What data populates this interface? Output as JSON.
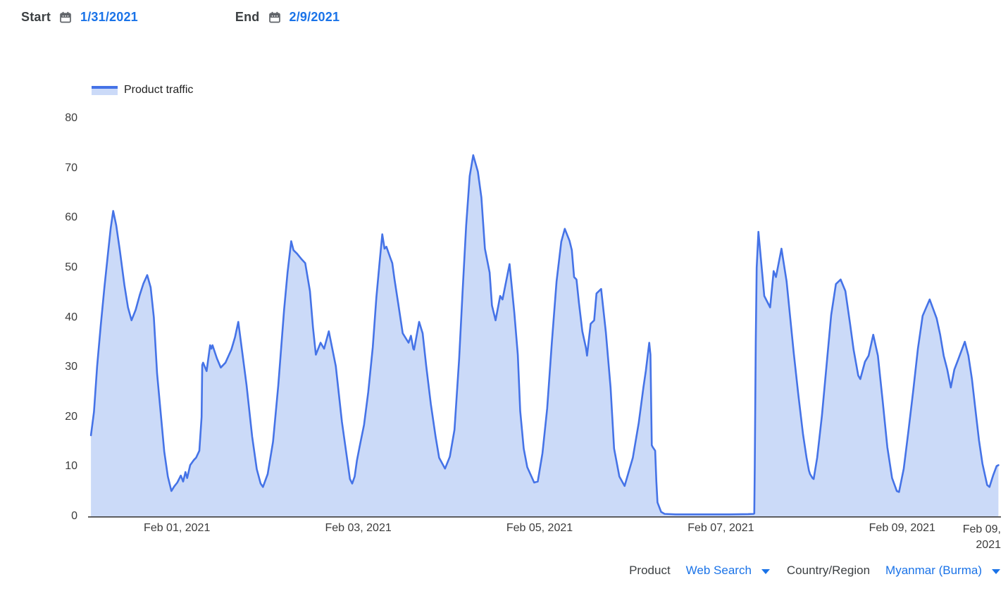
{
  "header": {
    "start_label": "Start",
    "start_value": "1/31/2021",
    "end_label": "End",
    "end_value": "2/9/2021"
  },
  "legend": {
    "label": "Product traffic"
  },
  "controls": {
    "product_label": "Product",
    "product_value": "Web Search",
    "region_label": "Country/Region",
    "region_value": "Myanmar (Burma)"
  },
  "colors": {
    "line": "#4573e7",
    "fill": "#cbdaf8",
    "link_blue": "#1a73e8",
    "text_dark": "#3c4043",
    "axis_line": "#3d3d3d"
  },
  "chart_data": {
    "type": "area",
    "title": "Product traffic",
    "xlabel": "",
    "ylabel": "",
    "x_unit": "days since Jan 31, 2021 00:00",
    "ylim": [
      0,
      80
    ],
    "y_ticks": [
      0,
      10,
      20,
      30,
      40,
      50,
      60,
      70,
      80
    ],
    "x_ticks": [
      {
        "day": 1,
        "label": "Feb 01, 2021"
      },
      {
        "day": 3,
        "label": "Feb 03, 2021"
      },
      {
        "day": 5,
        "label": "Feb 05, 2021"
      },
      {
        "day": 7,
        "label": "Feb 07, 2021"
      },
      {
        "day": 9,
        "label": "Feb 09, 2021"
      },
      {
        "day": 10.08,
        "label": "Feb 09, 2021",
        "lines": [
          "Feb 09,",
          "2021"
        ],
        "align": "right"
      }
    ],
    "grid": false,
    "legend_position": "top-left",
    "series": [
      {
        "name": "Product traffic",
        "points": [
          [
            0.051,
            16.3
          ],
          [
            0.085,
            21
          ],
          [
            0.12,
            30.2
          ],
          [
            0.16,
            38.5
          ],
          [
            0.2,
            46
          ],
          [
            0.24,
            53
          ],
          [
            0.27,
            58
          ],
          [
            0.297,
            61.4
          ],
          [
            0.33,
            58.5
          ],
          [
            0.37,
            53.5
          ],
          [
            0.42,
            46.5
          ],
          [
            0.46,
            42
          ],
          [
            0.499,
            39.4
          ],
          [
            0.545,
            41.5
          ],
          [
            0.59,
            44.5
          ],
          [
            0.63,
            46.8
          ],
          [
            0.672,
            48.5
          ],
          [
            0.71,
            46
          ],
          [
            0.745,
            40
          ],
          [
            0.781,
            28.7
          ],
          [
            0.82,
            21
          ],
          [
            0.86,
            13
          ],
          [
            0.9,
            8
          ],
          [
            0.939,
            5.1
          ],
          [
            0.97,
            6.0
          ],
          [
            1.004,
            6.8
          ],
          [
            1.043,
            8.2
          ],
          [
            1.068,
            7.0
          ],
          [
            1.094,
            8.9
          ],
          [
            1.113,
            7.7
          ],
          [
            1.146,
            10.3
          ],
          [
            1.185,
            11.3
          ],
          [
            1.211,
            11.8
          ],
          [
            1.247,
            13.2
          ],
          [
            1.272,
            20
          ],
          [
            1.279,
            30.4
          ],
          [
            1.288,
            30.9
          ],
          [
            1.327,
            29.2
          ],
          [
            1.366,
            34.4
          ],
          [
            1.379,
            33.7
          ],
          [
            1.392,
            34.4
          ],
          [
            1.44,
            31.8
          ],
          [
            1.483,
            29.9
          ],
          [
            1.535,
            30.9
          ],
          [
            1.6,
            33.5
          ],
          [
            1.64,
            36
          ],
          [
            1.677,
            39.1
          ],
          [
            1.72,
            33
          ],
          [
            1.768,
            26.4
          ],
          [
            1.83,
            16
          ],
          [
            1.88,
            9.5
          ],
          [
            1.923,
            6.6
          ],
          [
            1.949,
            5.9
          ],
          [
            2.001,
            8.5
          ],
          [
            2.06,
            15
          ],
          [
            2.118,
            26.4
          ],
          [
            2.182,
            41.5
          ],
          [
            2.22,
            49
          ],
          [
            2.26,
            55.3
          ],
          [
            2.286,
            53.5
          ],
          [
            2.325,
            52.8
          ],
          [
            2.37,
            51.8
          ],
          [
            2.415,
            50.9
          ],
          [
            2.467,
            45.3
          ],
          [
            2.5,
            38
          ],
          [
            2.532,
            32.5
          ],
          [
            2.584,
            34.9
          ],
          [
            2.623,
            33.7
          ],
          [
            2.675,
            37.2
          ],
          [
            2.752,
            30.2
          ],
          [
            2.82,
            19
          ],
          [
            2.908,
            7.5
          ],
          [
            2.933,
            6.6
          ],
          [
            2.96,
            8
          ],
          [
            2.986,
            11.3
          ],
          [
            3.02,
            14.5
          ],
          [
            3.064,
            18.4
          ],
          [
            3.11,
            25
          ],
          [
            3.16,
            34
          ],
          [
            3.2,
            44
          ],
          [
            3.24,
            52
          ],
          [
            3.265,
            56.7
          ],
          [
            3.29,
            53.8
          ],
          [
            3.31,
            54.2
          ],
          [
            3.355,
            51.9
          ],
          [
            3.375,
            50.9
          ],
          [
            3.4,
            47.6
          ],
          [
            3.44,
            42.9
          ],
          [
            3.49,
            36.8
          ],
          [
            3.555,
            34.9
          ],
          [
            3.581,
            36.3
          ],
          [
            3.607,
            33.7
          ],
          [
            3.615,
            33.5
          ],
          [
            3.671,
            39.1
          ],
          [
            3.71,
            36.8
          ],
          [
            3.75,
            30.2
          ],
          [
            3.8,
            22.6
          ],
          [
            3.853,
            16.0
          ],
          [
            3.892,
            11.8
          ],
          [
            3.957,
            9.6
          ],
          [
            4.01,
            12
          ],
          [
            4.061,
            17.4
          ],
          [
            4.113,
            31.6
          ],
          [
            4.152,
            45.7
          ],
          [
            4.19,
            58.5
          ],
          [
            4.229,
            68.4
          ],
          [
            4.268,
            72.6
          ],
          [
            4.319,
            69.3
          ],
          [
            4.358,
            64.1
          ],
          [
            4.397,
            53.8
          ],
          [
            4.449,
            49.0
          ],
          [
            4.475,
            42.4
          ],
          [
            4.514,
            39.4
          ],
          [
            4.566,
            44.3
          ],
          [
            4.591,
            43.6
          ],
          [
            4.669,
            50.7
          ],
          [
            4.721,
            41.0
          ],
          [
            4.76,
            32.5
          ],
          [
            4.786,
            21.2
          ],
          [
            4.825,
            13.6
          ],
          [
            4.864,
            9.9
          ],
          [
            4.94,
            6.8
          ],
          [
            4.98,
            7.0
          ],
          [
            5.032,
            12.7
          ],
          [
            5.084,
            21.7
          ],
          [
            5.135,
            34.9
          ],
          [
            5.187,
            47.2
          ],
          [
            5.239,
            55.2
          ],
          [
            5.278,
            57.8
          ],
          [
            5.33,
            55.4
          ],
          [
            5.356,
            53.5
          ],
          [
            5.381,
            48.1
          ],
          [
            5.407,
            47.6
          ],
          [
            5.434,
            42.9
          ],
          [
            5.472,
            37.2
          ],
          [
            5.511,
            33.9
          ],
          [
            5.524,
            32.3
          ],
          [
            5.563,
            38.7
          ],
          [
            5.602,
            39.4
          ],
          [
            5.628,
            44.8
          ],
          [
            5.679,
            45.7
          ],
          [
            5.731,
            37.0
          ],
          [
            5.783,
            25.9
          ],
          [
            5.822,
            13.6
          ],
          [
            5.88,
            8
          ],
          [
            5.938,
            6.1
          ],
          [
            6.029,
            11.8
          ],
          [
            6.094,
            18.8
          ],
          [
            6.145,
            25.9
          ],
          [
            6.172,
            29.2
          ],
          [
            6.21,
            34.9
          ],
          [
            6.223,
            32.5
          ],
          [
            6.238,
            14.3
          ],
          [
            6.249,
            13.9
          ],
          [
            6.275,
            13.2
          ],
          [
            6.288,
            7.0
          ],
          [
            6.301,
            2.8
          ],
          [
            6.34,
            0.9
          ],
          [
            6.379,
            0.5
          ],
          [
            6.5,
            0.4
          ],
          [
            6.7,
            0.4
          ],
          [
            6.9,
            0.4
          ],
          [
            7.1,
            0.4
          ],
          [
            7.3,
            0.45
          ],
          [
            7.36,
            0.5
          ],
          [
            7.368,
            0.6
          ],
          [
            7.374,
            10
          ],
          [
            7.385,
            35
          ],
          [
            7.395,
            50
          ],
          [
            7.414,
            57.2
          ],
          [
            7.479,
            44.3
          ],
          [
            7.543,
            42.0
          ],
          [
            7.582,
            49.3
          ],
          [
            7.608,
            48.1
          ],
          [
            7.668,
            53.8
          ],
          [
            7.725,
            47.2
          ],
          [
            7.764,
            40.1
          ],
          [
            7.803,
            33.0
          ],
          [
            7.854,
            24.5
          ],
          [
            7.906,
            16.5
          ],
          [
            7.945,
            11.8
          ],
          [
            7.971,
            9.2
          ],
          [
            7.984,
            8.5
          ],
          [
            8.01,
            7.7
          ],
          [
            8.023,
            7.5
          ],
          [
            8.062,
            11.8
          ],
          [
            8.114,
            20.2
          ],
          [
            8.165,
            30.2
          ],
          [
            8.217,
            40.5
          ],
          [
            8.269,
            46.7
          ],
          [
            8.321,
            47.6
          ],
          [
            8.373,
            45.3
          ],
          [
            8.425,
            38.7
          ],
          [
            8.464,
            33.5
          ],
          [
            8.515,
            28.3
          ],
          [
            8.538,
            27.6
          ],
          [
            8.59,
            31.1
          ],
          [
            8.629,
            32.3
          ],
          [
            8.681,
            36.5
          ],
          [
            8.732,
            32.3
          ],
          [
            8.784,
            23.3
          ],
          [
            8.836,
            13.9
          ],
          [
            8.888,
            7.7
          ],
          [
            8.94,
            5.1
          ],
          [
            8.965,
            4.9
          ],
          [
            9.017,
            9.6
          ],
          [
            9.069,
            17.2
          ],
          [
            9.121,
            25.2
          ],
          [
            9.173,
            33.7
          ],
          [
            9.225,
            40.3
          ],
          [
            9.303,
            43.6
          ],
          [
            9.38,
            39.8
          ],
          [
            9.419,
            36.5
          ],
          [
            9.458,
            32.3
          ],
          [
            9.497,
            29.5
          ],
          [
            9.536,
            25.9
          ],
          [
            9.575,
            29.5
          ],
          [
            9.613,
            31.3
          ],
          [
            9.691,
            35.1
          ],
          [
            9.73,
            32.3
          ],
          [
            9.769,
            27.6
          ],
          [
            9.808,
            21.4
          ],
          [
            9.847,
            15.3
          ],
          [
            9.885,
            10.6
          ],
          [
            9.937,
            6.3
          ],
          [
            9.963,
            5.9
          ],
          [
            10.002,
            8.2
          ],
          [
            10.041,
            10.1
          ],
          [
            10.061,
            10.3
          ]
        ]
      }
    ]
  }
}
